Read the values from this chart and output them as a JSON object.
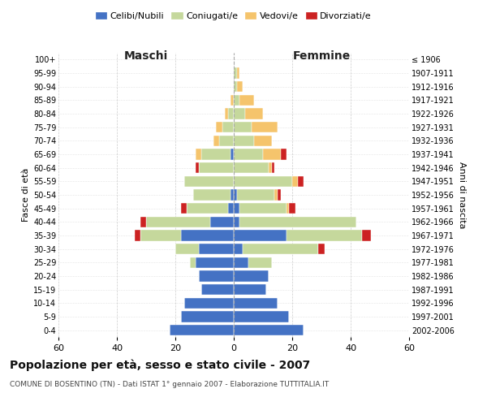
{
  "age_groups": [
    "0-4",
    "5-9",
    "10-14",
    "15-19",
    "20-24",
    "25-29",
    "30-34",
    "35-39",
    "40-44",
    "45-49",
    "50-54",
    "55-59",
    "60-64",
    "65-69",
    "70-74",
    "75-79",
    "80-84",
    "85-89",
    "90-94",
    "95-99",
    "100+"
  ],
  "birth_years": [
    "2002-2006",
    "1997-2001",
    "1992-1996",
    "1987-1991",
    "1982-1986",
    "1977-1981",
    "1972-1976",
    "1967-1971",
    "1962-1966",
    "1957-1961",
    "1952-1956",
    "1947-1951",
    "1942-1946",
    "1937-1941",
    "1932-1936",
    "1927-1931",
    "1922-1926",
    "1917-1921",
    "1912-1916",
    "1907-1911",
    "≤ 1906"
  ],
  "males": {
    "celibi": [
      22,
      18,
      17,
      11,
      12,
      13,
      12,
      18,
      8,
      2,
      1,
      0,
      0,
      1,
      0,
      0,
      0,
      0,
      0,
      0,
      0
    ],
    "coniugati": [
      0,
      0,
      0,
      0,
      0,
      2,
      8,
      14,
      22,
      14,
      13,
      17,
      12,
      10,
      5,
      4,
      2,
      0,
      0,
      0,
      0
    ],
    "vedovi": [
      0,
      0,
      0,
      0,
      0,
      0,
      0,
      0,
      0,
      0,
      0,
      0,
      0,
      2,
      2,
      2,
      1,
      1,
      0,
      0,
      0
    ],
    "divorziati": [
      0,
      0,
      0,
      0,
      0,
      0,
      0,
      2,
      2,
      2,
      0,
      0,
      1,
      0,
      0,
      0,
      0,
      0,
      0,
      0,
      0
    ]
  },
  "females": {
    "nubili": [
      24,
      19,
      15,
      11,
      12,
      5,
      3,
      18,
      2,
      2,
      1,
      0,
      0,
      0,
      0,
      0,
      0,
      0,
      0,
      0,
      0
    ],
    "coniugate": [
      0,
      0,
      0,
      0,
      0,
      8,
      26,
      26,
      40,
      16,
      13,
      20,
      12,
      10,
      7,
      6,
      4,
      2,
      1,
      1,
      0
    ],
    "vedove": [
      0,
      0,
      0,
      0,
      0,
      0,
      0,
      0,
      0,
      1,
      1,
      2,
      1,
      6,
      6,
      9,
      6,
      5,
      2,
      1,
      0
    ],
    "divorziate": [
      0,
      0,
      0,
      0,
      0,
      0,
      2,
      3,
      0,
      2,
      1,
      2,
      1,
      2,
      0,
      0,
      0,
      0,
      0,
      0,
      0
    ]
  },
  "colors": {
    "celibi_nubili": "#4472C4",
    "coniugati": "#c5d89c",
    "vedovi": "#f5c46c",
    "divorziati": "#cc2222"
  },
  "xlim": 60,
  "title": "Popolazione per età, sesso e stato civile - 2007",
  "subtitle": "COMUNE DI BOSENTINO (TN) - Dati ISTAT 1° gennaio 2007 - Elaborazione TUTTITALIA.IT",
  "ylabel": "Fasce di età",
  "ylabel_right": "Anni di nascita",
  "legend_labels": [
    "Celibi/Nubili",
    "Coniugati/e",
    "Vedovi/e",
    "Divorziati/e"
  ],
  "left_header": "Maschi",
  "right_header": "Femmine",
  "background_color": "#ffffff",
  "grid_color": "#cccccc"
}
